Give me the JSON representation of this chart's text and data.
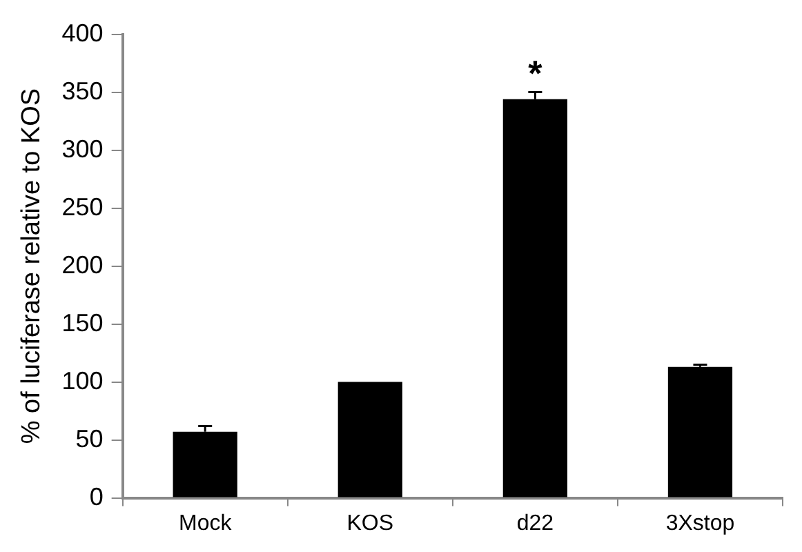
{
  "chart_data": {
    "type": "bar",
    "ylabel": "% of luciferase relative to KOS",
    "categories": [
      "Mock",
      "KOS",
      "d22",
      "3Xstop"
    ],
    "values": [
      57,
      100,
      344,
      113
    ],
    "errors": [
      5,
      null,
      6,
      2
    ],
    "color": "#000000",
    "ylim": [
      0,
      400
    ],
    "yticks": [
      0,
      50,
      100,
      150,
      200,
      250,
      300,
      350,
      400
    ],
    "grid": false,
    "legend": false,
    "annotations": [
      {
        "text": "*",
        "x": "d22",
        "y": 350
      }
    ]
  }
}
